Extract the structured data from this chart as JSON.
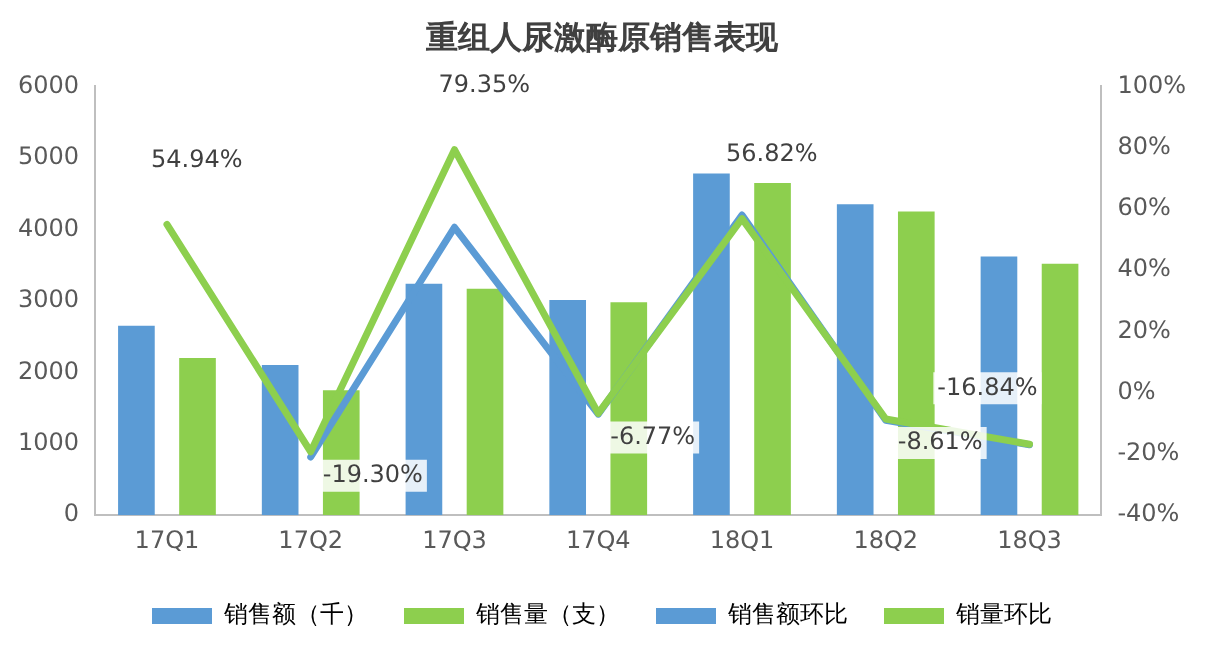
{
  "chart_data": {
    "type": "bar",
    "title": "重组人尿激酶原销售表现",
    "categories": [
      "17Q1",
      "17Q2",
      "17Q3",
      "17Q4",
      "18Q1",
      "18Q2",
      "18Q3"
    ],
    "series": [
      {
        "name": "销售额（千）",
        "color": "#5b9bd5",
        "values": [
          2650,
          2100,
          3240,
          3010,
          4780,
          4350,
          3620
        ]
      },
      {
        "name": "销售量（支）",
        "color": "#8dcf4e",
        "values": [
          2200,
          1750,
          3170,
          2980,
          4650,
          4250,
          3520
        ]
      },
      {
        "name": "销售额环比",
        "type": "line",
        "axis": "y2",
        "color": "#5b9bd5",
        "values": [
          null,
          -21,
          54,
          -7,
          58,
          -9,
          -17
        ]
      },
      {
        "name": "销量环比",
        "type": "line",
        "axis": "y2",
        "color": "#8dcf4e",
        "values": [
          54.94,
          -19.3,
          79.35,
          -6.77,
          56.82,
          -8.61,
          -16.84
        ],
        "value_labels": [
          "54.94%",
          "-19.30%",
          "79.35%",
          "-6.77%",
          "56.82%",
          "-8.61%",
          "-16.84%"
        ]
      }
    ],
    "ylim": [
      0,
      6000
    ],
    "yticks": [
      0,
      1000,
      2000,
      3000,
      4000,
      5000,
      6000
    ],
    "y2lim": [
      -40,
      100
    ],
    "y2ticks": [
      {
        "value": -40,
        "label": "-40%"
      },
      {
        "value": -20,
        "label": "-20%"
      },
      {
        "value": 0,
        "label": "0%"
      },
      {
        "value": 20,
        "label": "20%"
      },
      {
        "value": 40,
        "label": "40%"
      },
      {
        "value": 60,
        "label": "60%"
      },
      {
        "value": 80,
        "label": "80%"
      },
      {
        "value": 100,
        "label": "100%"
      }
    ],
    "grid": false,
    "legend": "bottom",
    "marker": "none",
    "line_style": "solid"
  }
}
